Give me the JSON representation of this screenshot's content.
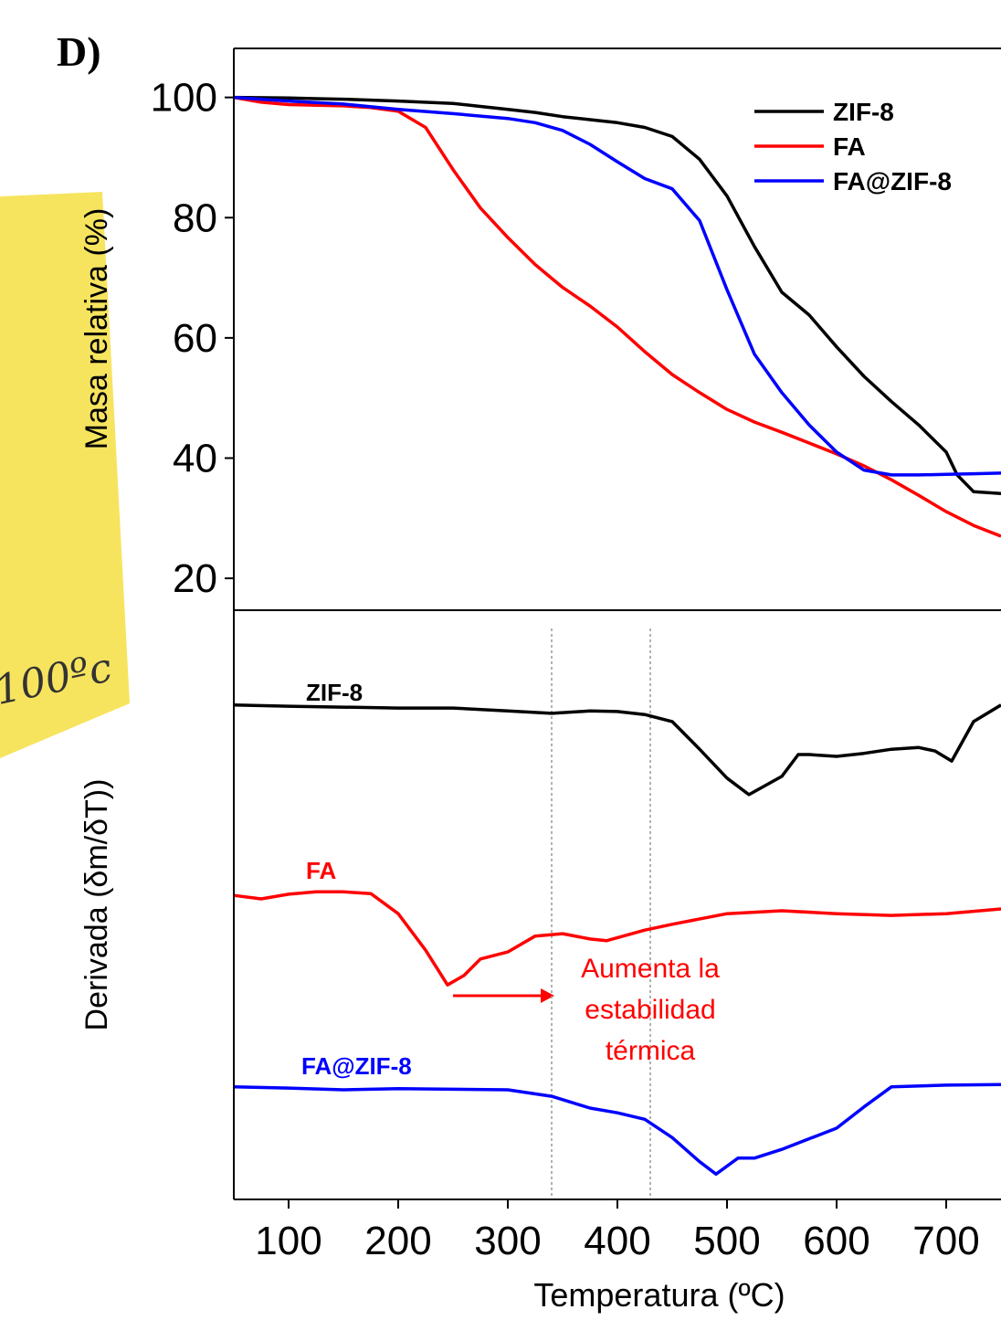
{
  "panel_label": "D)",
  "note_text": "100ºc",
  "chart_data": [
    {
      "type": "line",
      "y_label": "Masa relativa (%)",
      "xlim": [
        50,
        750
      ],
      "ylim": [
        15,
        108
      ],
      "yticks": [
        20,
        40,
        60,
        80,
        100
      ],
      "legend": "upper right",
      "series": [
        {
          "name": "ZIF-8",
          "color": "#000000",
          "x": [
            50,
            100,
            125,
            150,
            200,
            250,
            275,
            300,
            325,
            350,
            375,
            400,
            425,
            450,
            475,
            500,
            525,
            550,
            575,
            600,
            625,
            650,
            675,
            700,
            710,
            725,
            750
          ],
          "values": [
            100,
            99.9,
            99.8,
            99.7,
            99.4,
            99,
            98.5,
            98,
            97.5,
            96.8,
            96.3,
            95.8,
            95,
            93.5,
            89.7,
            83.6,
            75.2,
            67.6,
            63.8,
            58.5,
            53.6,
            49.4,
            45.5,
            41,
            37.2,
            34.4,
            34.1
          ]
        },
        {
          "name": "FA",
          "color": "#ff0000",
          "x": [
            50,
            75,
            100,
            150,
            175,
            200,
            225,
            250,
            275,
            300,
            325,
            350,
            375,
            400,
            425,
            450,
            475,
            500,
            525,
            550,
            575,
            600,
            625,
            650,
            675,
            700,
            725,
            750
          ],
          "values": [
            100,
            99.2,
            98.8,
            98.6,
            98.3,
            97.7,
            95,
            88,
            81.6,
            76.7,
            72.2,
            68.4,
            65.3,
            61.8,
            57.7,
            53.9,
            50.9,
            48.1,
            46,
            44.3,
            42.5,
            40.7,
            38.7,
            36.4,
            33.8,
            31.1,
            28.8,
            27
          ]
        },
        {
          "name": "FA@ZIF-8",
          "color": "#0000ff",
          "x": [
            50,
            100,
            150,
            200,
            250,
            300,
            325,
            350,
            375,
            400,
            425,
            450,
            475,
            500,
            525,
            550,
            575,
            600,
            625,
            650,
            675,
            700,
            725,
            750
          ],
          "values": [
            100,
            99.4,
            98.9,
            98,
            97.3,
            96.5,
            95.8,
            94.5,
            92.2,
            89.3,
            86.5,
            84.8,
            79.5,
            68,
            57.3,
            50.9,
            45.5,
            41,
            38,
            37.2,
            37.2,
            37.3,
            37.4,
            37.5
          ]
        }
      ]
    },
    {
      "type": "line",
      "y_label": "Derivada (δm/δT))",
      "x_label": "Temperatura (ºC)",
      "xlim": [
        50,
        750
      ],
      "ylim": [
        0,
        100
      ],
      "xticks": [
        100,
        200,
        300,
        400,
        500,
        600,
        700
      ],
      "vlines": [
        340,
        430
      ],
      "annotation": [
        "Aumenta la",
        "estabilidad",
        "térmica"
      ],
      "annotation_color": "#ff0000",
      "series": [
        {
          "name": "ZIF-8",
          "color": "#000000",
          "x": [
            50,
            100,
            200,
            250,
            300,
            340,
            375,
            400,
            425,
            450,
            475,
            500,
            520,
            550,
            565,
            575,
            600,
            625,
            650,
            675,
            690,
            705,
            725,
            750
          ],
          "values": [
            83.9,
            83.7,
            83.4,
            83.4,
            82.9,
            82.5,
            82.9,
            82.8,
            82.3,
            81.1,
            76.4,
            71.5,
            68.7,
            71.8,
            75.5,
            75.5,
            75.2,
            75.7,
            76.4,
            76.7,
            76.1,
            74.4,
            81.1,
            83.9
          ]
        },
        {
          "name": "FA",
          "color": "#ff0000",
          "x": [
            50,
            75,
            100,
            125,
            150,
            175,
            200,
            225,
            245,
            260,
            275,
            300,
            325,
            350,
            375,
            390,
            425,
            450,
            500,
            550,
            600,
            650,
            700,
            750
          ],
          "values": [
            51.6,
            51,
            51.8,
            52.2,
            52.2,
            51.9,
            48.5,
            42.3,
            36.4,
            38,
            40.8,
            42,
            44.7,
            45.1,
            44.2,
            43.9,
            45.7,
            46.7,
            48.5,
            49,
            48.5,
            48.2,
            48.5,
            49.3
          ]
        },
        {
          "name": "FA@ZIF-8",
          "color": "#0000ff",
          "x": [
            50,
            100,
            150,
            200,
            300,
            340,
            375,
            400,
            425,
            450,
            475,
            490,
            510,
            525,
            550,
            600,
            625,
            650,
            700,
            750
          ],
          "values": [
            19.1,
            18.9,
            18.6,
            18.8,
            18.6,
            17.5,
            15.5,
            14.7,
            13.6,
            10.5,
            6.4,
            4.3,
            7,
            7,
            8.5,
            12.1,
            15.7,
            19.1,
            19.4,
            19.5
          ]
        }
      ]
    }
  ]
}
